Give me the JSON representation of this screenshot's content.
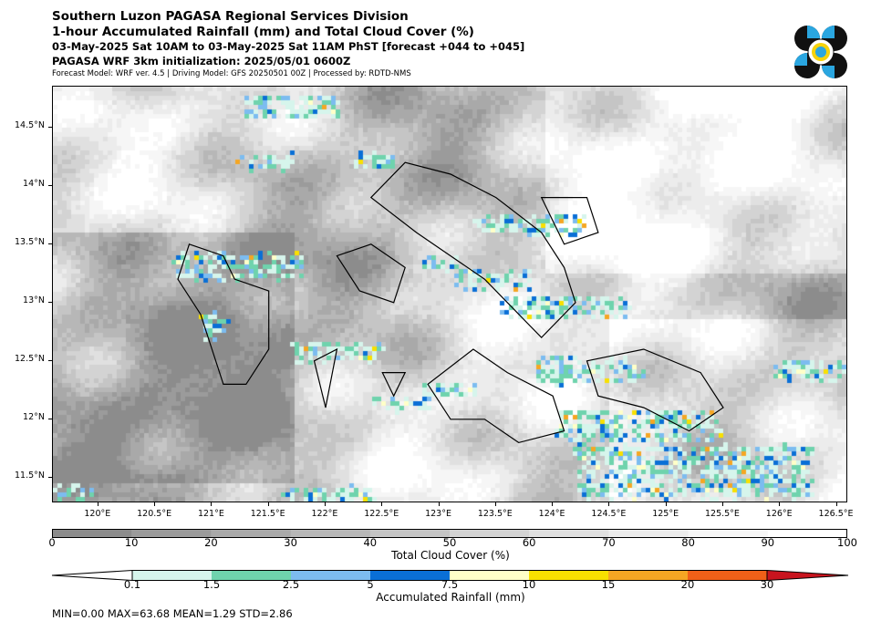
{
  "header": {
    "line1": "Southern Luzon PAGASA Regional Services Division",
    "line2": "1-hour Accumulated Rainfall (mm) and Total Cloud Cover (%)",
    "line3": "03-May-2025 Sat 10AM to 03-May-2025 Sat 11AM PhST [forecast +044 to +045]",
    "line4": "PAGASA WRF 3km initialization: 2025/05/01 0600Z",
    "line5": "Forecast Model: WRF ver. 4.5 | Driving Model: GFS 20250501 00Z | Processed by: RDTD-NMS"
  },
  "map": {
    "lon_range": [
      119.6,
      126.6
    ],
    "lat_range": [
      11.28,
      14.85
    ],
    "lat_ticks": [
      {
        "value": 14.5,
        "label": "14.5°N"
      },
      {
        "value": 14.0,
        "label": "14°N"
      },
      {
        "value": 13.5,
        "label": "13.5°N"
      },
      {
        "value": 13.0,
        "label": "13°N"
      },
      {
        "value": 12.5,
        "label": "12.5°N"
      },
      {
        "value": 12.0,
        "label": "12°N"
      },
      {
        "value": 11.5,
        "label": "11.5°N"
      }
    ],
    "lon_ticks": [
      {
        "value": 120.0,
        "label": "120°E"
      },
      {
        "value": 120.5,
        "label": "120.5°E"
      },
      {
        "value": 121.0,
        "label": "121°E"
      },
      {
        "value": 121.5,
        "label": "121.5°E"
      },
      {
        "value": 122.0,
        "label": "122°E"
      },
      {
        "value": 122.5,
        "label": "122.5°E"
      },
      {
        "value": 123.0,
        "label": "123°E"
      },
      {
        "value": 123.5,
        "label": "123.5°E"
      },
      {
        "value": 124.0,
        "label": "124°E"
      },
      {
        "value": 124.5,
        "label": "124.5°E"
      },
      {
        "value": 125.0,
        "label": "125°E"
      },
      {
        "value": 125.5,
        "label": "125.5°E"
      },
      {
        "value": 126.0,
        "label": "126°E"
      },
      {
        "value": 126.5,
        "label": "126.5°E"
      }
    ]
  },
  "cloud_colorbar": {
    "title": "Total Cloud Cover (%)",
    "labels": [
      "0",
      "10",
      "20",
      "30",
      "40",
      "50",
      "60",
      "70",
      "80",
      "90",
      "100"
    ],
    "colors": [
      "#8c8c8c",
      "#9b9b9b",
      "#a9a9a9",
      "#b7b7b7",
      "#c5c5c5",
      "#d3d3d3",
      "#e0e0e0",
      "#ececec",
      "#f6f6f6",
      "#ffffff"
    ]
  },
  "rain_colorbar": {
    "title": "Accumulated Rainfall (mm)",
    "labels": [
      "0.1",
      "1.5",
      "2.5",
      "5",
      "7.5",
      "10",
      "15",
      "20",
      "30"
    ],
    "under_color": "#ffffff",
    "colors": [
      "#d6f5ec",
      "#6fd3ad",
      "#7cbcf0",
      "#0a6fd6",
      "#ffffc8",
      "#f8e000",
      "#f5a623",
      "#f06018"
    ],
    "over_color": "#c8141e"
  },
  "stats": {
    "text": "MIN=0.00   MAX=63.68   MEAN=1.29   STD=2.86"
  }
}
